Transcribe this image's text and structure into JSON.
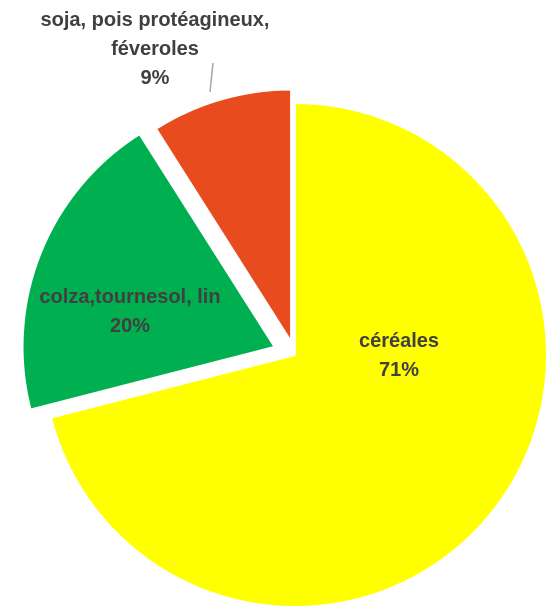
{
  "chart_data": {
    "type": "pie",
    "categories": [
      "céréales",
      "colza,tournesol, lin",
      "soja, pois protéagineux, féveroles"
    ],
    "values": [
      71,
      20,
      9
    ],
    "value_labels": [
      "71%",
      "20%",
      "9%"
    ],
    "colors": [
      "#ffff00",
      "#00b050",
      "#e84c1e"
    ]
  }
}
